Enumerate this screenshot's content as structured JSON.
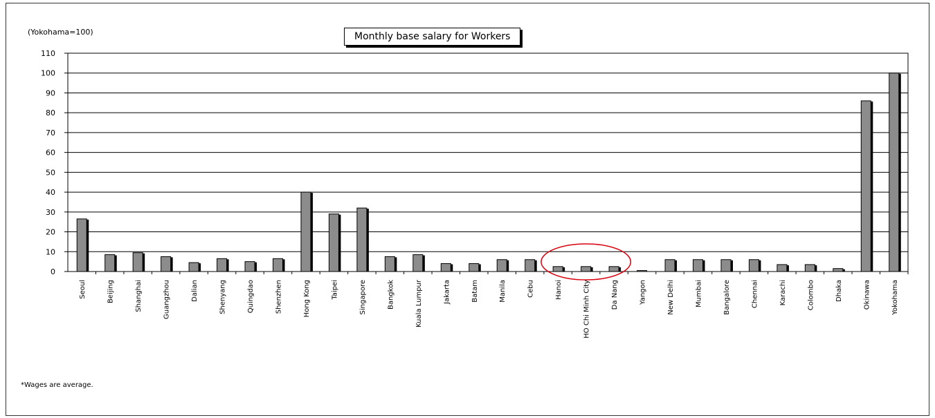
{
  "chart_data": {
    "type": "bar",
    "title": "Monthly base salary for Workers",
    "unit_note": "(Yokohama=100)",
    "footnote": "*Wages are average.",
    "ylim": [
      0,
      110
    ],
    "yticks": [
      0,
      10,
      20,
      30,
      40,
      50,
      60,
      70,
      80,
      90,
      100,
      110
    ],
    "grid": true,
    "categories": [
      "Seoul",
      "Beijing",
      "Shanghai",
      "Guangzhou",
      "Dalian",
      "Shenyang",
      "Quingdao",
      "Shenzhen",
      "Hong Kong",
      "Taipei",
      "Singapore",
      "Bangkok",
      "Kuala Lumpur",
      "Jakarta",
      "Batam",
      "Manila",
      "Cebu",
      "Hanoi",
      "HO Chi Minh City",
      "Da Nang",
      "Yangon",
      "New Delhi",
      "Mumbai",
      "Bangalore",
      "Chennai",
      "Karachi",
      "Colombo",
      "Dhaka",
      "Okinawa",
      "Yokohama"
    ],
    "values": [
      26.5,
      8.5,
      9.5,
      7.5,
      4.5,
      6.5,
      5.0,
      6.5,
      40,
      29,
      32,
      7.5,
      8.5,
      4.0,
      4.0,
      6.0,
      6.0,
      2.5,
      2.5,
      2.5,
      0.5,
      6.0,
      6.0,
      6.0,
      6.0,
      3.5,
      3.5,
      1.5,
      86,
      100
    ],
    "bar_color": "#8c8c8c",
    "shadow_color": "#000000",
    "highlight_color": "#d9000d",
    "highlighted_categories": [
      "Hanoi",
      "HO Chi Minh City",
      "Da Nang"
    ]
  }
}
